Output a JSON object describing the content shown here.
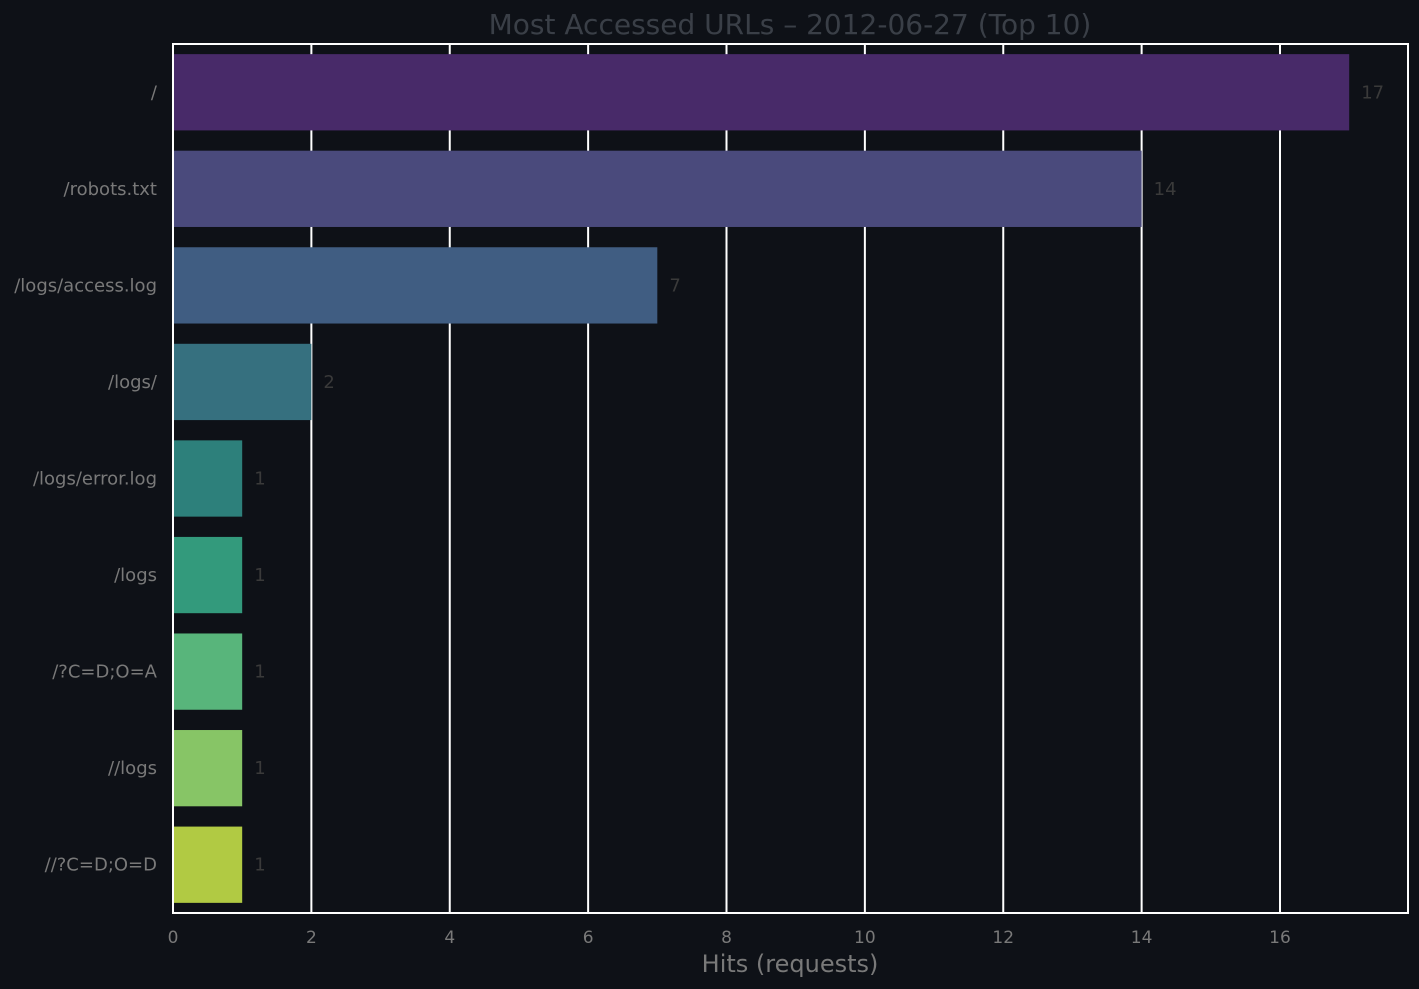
{
  "chart_data": {
    "type": "bar",
    "orientation": "horizontal",
    "title": "Most Accessed URLs – 2012-06-27 (Top 10)",
    "xlabel": "Hits (requests)",
    "ylabel": "",
    "categories": [
      "/",
      "/robots.txt",
      "/logs/access.log",
      "/logs/",
      "/logs/error.log",
      "/logs",
      "/?C=D;O=A",
      "//logs",
      "//?C=D;O=D"
    ],
    "values": [
      17,
      14,
      7,
      2,
      1,
      1,
      1,
      1,
      1
    ],
    "xlim": [
      0,
      17.85
    ],
    "xticks": [
      0,
      2,
      4,
      6,
      8,
      10,
      12,
      14,
      16
    ],
    "grid": true,
    "colormap": "viridis",
    "bar_colors": [
      "#482a69",
      "#4a4a7c",
      "#405d82",
      "#36707f",
      "#2d807b",
      "#339a7c",
      "#58b57b",
      "#87c566",
      "#b1ca43"
    ],
    "colors": {
      "background": "#0e1117",
      "grid": "#ffffff",
      "frame": "#ffffff",
      "title_text": "#3a3f47",
      "axis_text": "#797979",
      "value_text": "#3a3a3a"
    }
  }
}
